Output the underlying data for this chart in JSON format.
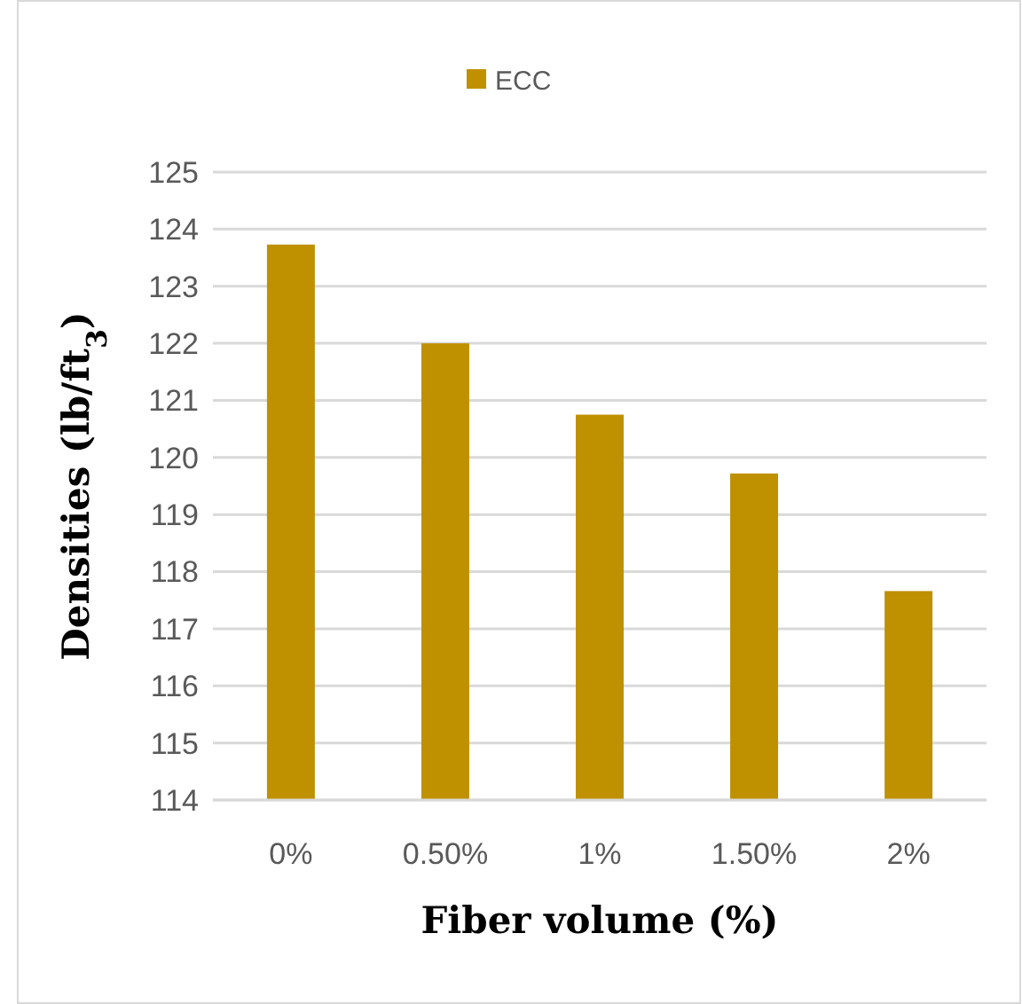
{
  "chart_data": {
    "type": "bar",
    "xlabel": "Fiber volume (%)",
    "ylabel": "Densities (lb/ft$_{3}$)",
    "categories": [
      "0%",
      "0.50%",
      "1%",
      "1.50%",
      "2%"
    ],
    "series": [
      {
        "name": "ECC",
        "color": "#bf9000",
        "values": [
          123.73,
          122.0,
          120.75,
          119.72,
          117.66
        ]
      }
    ],
    "ylim": [
      114,
      125
    ],
    "yticks": [
      114,
      115,
      116,
      117,
      118,
      119,
      120,
      121,
      122,
      123,
      124,
      125
    ],
    "grid": "y",
    "legend": "top"
  }
}
